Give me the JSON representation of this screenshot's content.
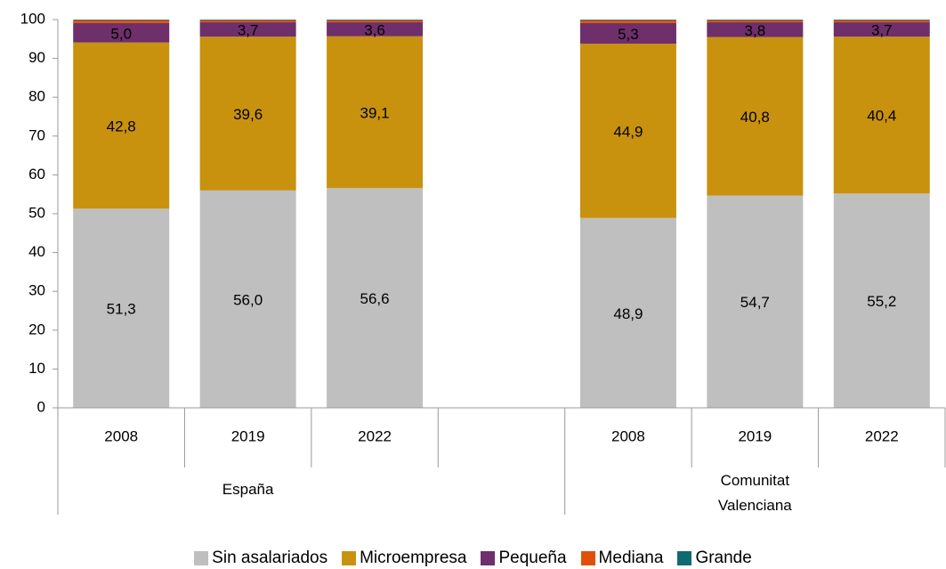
{
  "chart_data": {
    "type": "stacked_bar",
    "categories": [
      "2008",
      "2019",
      "2022",
      null,
      "2008",
      "2019",
      "2022"
    ],
    "category_groups": [
      "España",
      "España",
      "España",
      "España",
      "Comunitat Valenciana",
      "Comunitat Valenciana",
      "Comunitat Valenciana"
    ],
    "series": [
      {
        "name": "Sin asalariados",
        "color": "#bfbfbf",
        "values": [
          51.3,
          56.0,
          56.6,
          null,
          48.9,
          54.7,
          55.2
        ],
        "value_labels": [
          "51,3",
          "56,0",
          "56,6",
          null,
          "48,9",
          "54,7",
          "55,2"
        ]
      },
      {
        "name": "Microempresa",
        "color": "#c8920e",
        "values": [
          42.8,
          39.6,
          39.1,
          null,
          44.9,
          40.8,
          40.4
        ],
        "value_labels": [
          "42,8",
          "39,6",
          "39,1",
          null,
          "44,9",
          "40,8",
          "40,4"
        ]
      },
      {
        "name": "Pequeña",
        "color": "#6e2f6b",
        "values": [
          5.0,
          3.7,
          3.6,
          null,
          5.3,
          3.8,
          3.7
        ],
        "value_labels": [
          "5,0",
          "3,7",
          "3,6",
          null,
          "5,3",
          "3,8",
          "3,7"
        ]
      },
      {
        "name": "Mediana",
        "color": "#e0500a",
        "values": [
          0.7,
          0.5,
          0.5,
          null,
          0.7,
          0.5,
          0.5
        ]
      },
      {
        "name": "Grande",
        "color": "#0f6b70",
        "values": [
          0.2,
          0.2,
          0.2,
          null,
          0.2,
          0.2,
          0.2
        ]
      }
    ],
    "ylim": [
      0,
      100
    ],
    "yticks": [
      0,
      10,
      20,
      30,
      40,
      50,
      60,
      70,
      80,
      90,
      100
    ],
    "grid": false,
    "legend": "bottom"
  }
}
